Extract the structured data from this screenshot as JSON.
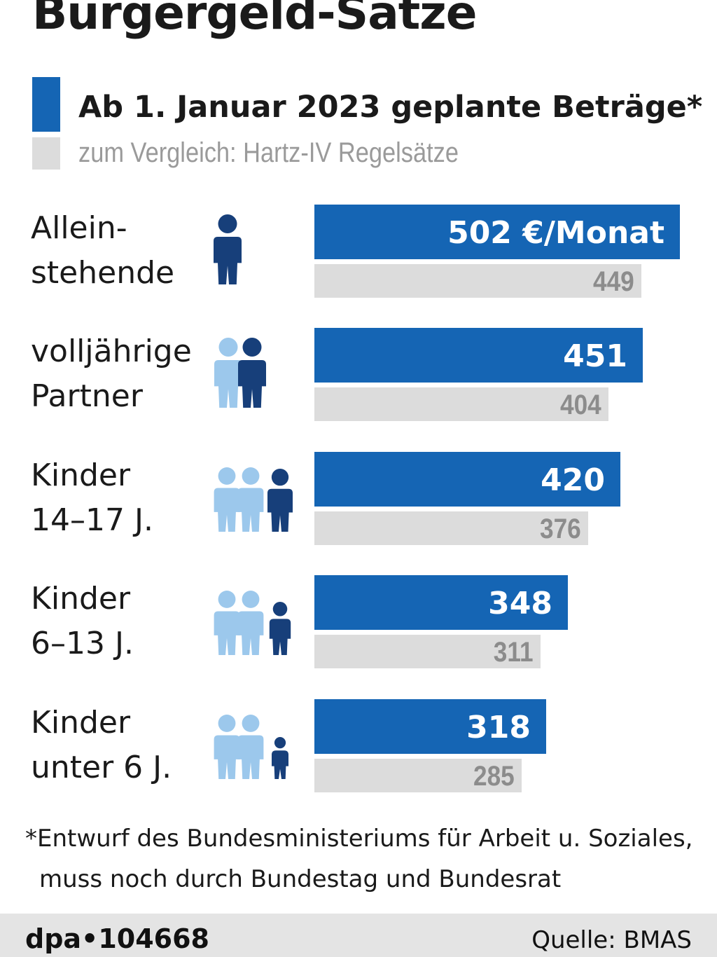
{
  "title": "Bürgergeld-Sätze",
  "legend": {
    "new_label": "Ab 1. Januar 2023 geplante Beträge*",
    "old_label": "zum Vergleich: Hartz-IV Regelsätze"
  },
  "colors": {
    "new": "#1565b4",
    "old": "#dcdcdc",
    "icon_dark": "#173f7a",
    "icon_light": "#9cc8ec"
  },
  "rows": [
    {
      "label_line1": "Allein-",
      "label_line2": "stehende",
      "new_label": "502 €/Monat",
      "old_label": "449",
      "icons": [
        "dark-adult"
      ]
    },
    {
      "label_line1": "volljährige",
      "label_line2": "Partner",
      "new_label": "451",
      "old_label": "404",
      "icons": [
        "light-adult",
        "dark-adult"
      ]
    },
    {
      "label_line1": "Kinder",
      "label_line2": "14–17 J.",
      "new_label": "420",
      "old_label": "376",
      "icons": [
        "light-adult",
        "light-adult",
        "dark-teen"
      ]
    },
    {
      "label_line1": "Kinder",
      "label_line2": "6–13 J.",
      "new_label": "348",
      "old_label": "311",
      "icons": [
        "light-adult",
        "light-adult",
        "dark-child"
      ]
    },
    {
      "label_line1": "Kinder",
      "label_line2": "unter 6 J.",
      "new_label": "318",
      "old_label": "285",
      "icons": [
        "light-adult",
        "light-adult",
        "dark-toddler"
      ]
    }
  ],
  "chart_data": {
    "type": "bar",
    "orientation": "horizontal",
    "title": "Bürgergeld-Sätze",
    "categories": [
      "Allein-stehende",
      "volljährige Partner",
      "Kinder 14–17 J.",
      "Kinder 6–13 J.",
      "Kinder unter 6 J."
    ],
    "series": [
      {
        "name": "Ab 1. Januar 2023 geplante Beträge*",
        "values": [
          502,
          451,
          420,
          348,
          318
        ]
      },
      {
        "name": "zum Vergleich: Hartz-IV Regelsätze",
        "values": [
          449,
          404,
          376,
          311,
          285
        ]
      }
    ],
    "unit": "€/Monat",
    "xlim": [
      0,
      502
    ],
    "grid": false,
    "legend_position": "top-left"
  },
  "footnote": {
    "line1": "*Entwurf des Bundesministeriums für Arbeit u. Soziales,",
    "line2": "muss noch durch Bundestag und Bundesrat"
  },
  "footer": {
    "credit": "dpa•104668",
    "source": "Quelle: BMAS"
  }
}
